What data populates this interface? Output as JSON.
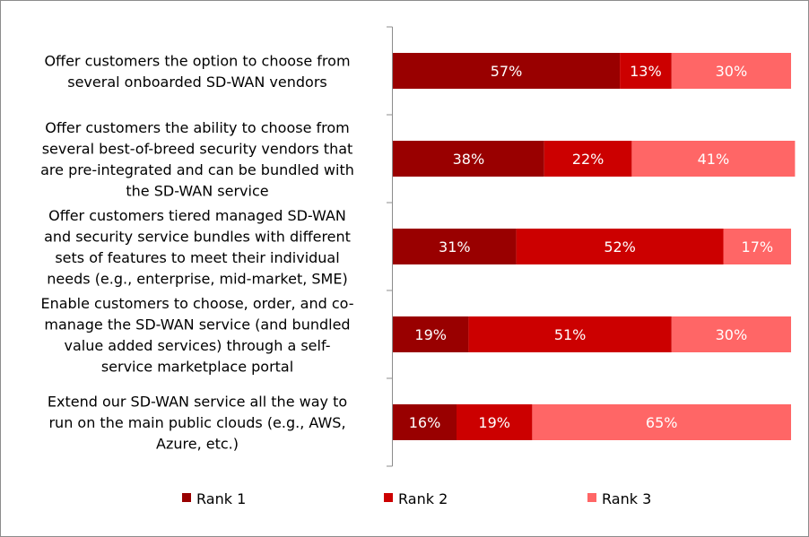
{
  "chart_data": {
    "type": "bar",
    "orientation": "horizontal",
    "stacked": true,
    "categories": [
      [
        "Offer customers the option to choose from",
        "several onboarded SD-WAN vendors"
      ],
      [
        "Offer customers the ability to choose from",
        "several best-of-breed security vendors that",
        "are pre-integrated and can be bundled with",
        "the SD-WAN service"
      ],
      [
        "Offer customers tiered managed SD-WAN",
        "and security service bundles with different",
        "sets of features to meet their individual",
        "needs (e.g., enterprise, mid-market, SME)"
      ],
      [
        "Enable customers to choose, order, and co-",
        "manage the SD-WAN service (and bundled",
        "value added services) through a self-",
        "service marketplace portal"
      ],
      [
        "Extend our SD-WAN service all the way to",
        "run on the main public clouds (e.g., AWS,",
        "Azure, etc.)"
      ]
    ],
    "series": [
      {
        "name": "Rank 1",
        "color": "#990000",
        "values": [
          57,
          38,
          31,
          19,
          16
        ],
        "labels": [
          "57%",
          "38%",
          "31%",
          "19%",
          "16%"
        ]
      },
      {
        "name": "Rank 2",
        "color": "#cc0000",
        "values": [
          13,
          22,
          52,
          51,
          19
        ],
        "labels": [
          "13%",
          "22%",
          "52%",
          "51%",
          "19%"
        ]
      },
      {
        "name": "Rank 3",
        "color": "#ff6666",
        "values": [
          30,
          41,
          17,
          30,
          65
        ],
        "labels": [
          "30%",
          "41%",
          "17%",
          "30%",
          "65%"
        ]
      }
    ],
    "xlim": [
      0,
      100
    ],
    "grid": false,
    "legend": "bottom"
  }
}
